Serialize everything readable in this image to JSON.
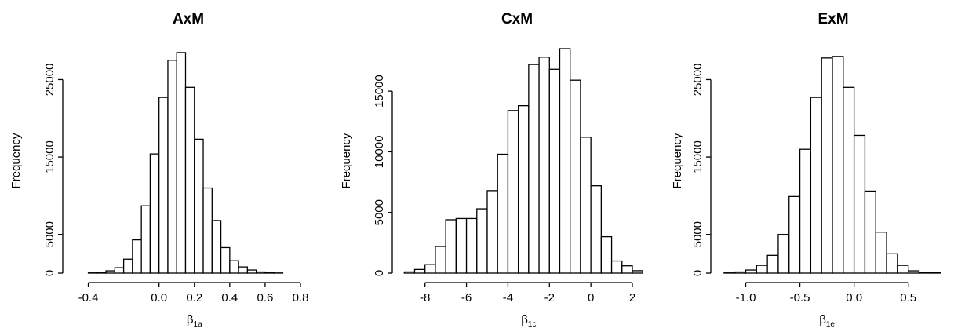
{
  "chart_data": [
    {
      "type": "bar",
      "title": "AxM",
      "ylabel": "Frequency",
      "xlabel_symbol": "β",
      "xlabel_subscript": "1a",
      "xlim": [
        -0.5,
        0.8
      ],
      "ylim": [
        0,
        29000
      ],
      "x_ticks": [
        -0.4,
        0.0,
        0.2,
        0.4,
        0.6,
        0.8
      ],
      "x_tick_labels": [
        "-0.4",
        "0.0",
        "0.2",
        "0.4",
        "0.6",
        "0.8"
      ],
      "y_ticks": [
        0,
        5000,
        15000,
        25000
      ],
      "y_tick_labels": [
        "0",
        "5000",
        "15000",
        "25000"
      ],
      "bin_width": 0.05,
      "bin_start": -0.4,
      "values": [
        30,
        100,
        300,
        700,
        1800,
        4300,
        8700,
        15400,
        22700,
        27500,
        28500,
        24000,
        17300,
        11000,
        6800,
        3300,
        1600,
        800,
        400,
        150,
        50,
        20
      ]
    },
    {
      "type": "bar",
      "title": "CxM",
      "ylabel": "Frequency",
      "xlabel_symbol": "β",
      "xlabel_subscript": "1c",
      "xlim": [
        -9.2,
        2.0
      ],
      "ylim": [
        0,
        18500
      ],
      "x_ticks": [
        -8,
        -6,
        -4,
        -2,
        0,
        2
      ],
      "x_tick_labels": [
        "-8",
        "-6",
        "-4",
        "-2",
        "0",
        "2"
      ],
      "y_ticks": [
        0,
        5000,
        10000,
        15000
      ],
      "y_tick_labels": [
        "0",
        "5000",
        "10000",
        "15000"
      ],
      "bin_width": 0.5,
      "bin_start": -9.0,
      "values": [
        100,
        300,
        700,
        2200,
        4400,
        4500,
        4500,
        5300,
        6800,
        9800,
        13400,
        13800,
        17200,
        17800,
        16800,
        18500,
        15900,
        11200,
        7200,
        3000,
        1000,
        600,
        200
      ]
    },
    {
      "type": "bar",
      "title": "ExM",
      "ylabel": "Frequency",
      "xlabel_symbol": "β",
      "xlabel_subscript": "1e",
      "xlim": [
        -1.25,
        0.85
      ],
      "ylim": [
        0,
        29000
      ],
      "x_ticks": [
        -1.0,
        -0.5,
        0.0,
        0.5
      ],
      "x_tick_labels": [
        "-1.0",
        "-0.5",
        "0.0",
        "0.5"
      ],
      "y_ticks": [
        0,
        5000,
        15000,
        25000
      ],
      "y_tick_labels": [
        "0",
        "5000",
        "15000",
        "25000"
      ],
      "bin_width": 0.1,
      "bin_start": -1.2,
      "values": [
        30,
        150,
        400,
        1000,
        2300,
        5000,
        9900,
        16000,
        22700,
        27800,
        28000,
        24000,
        17800,
        10600,
        5300,
        2500,
        1000,
        300,
        100,
        40
      ]
    }
  ]
}
